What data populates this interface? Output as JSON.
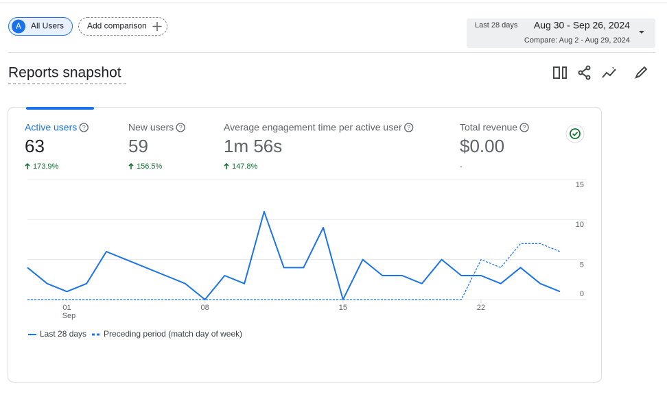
{
  "header": {
    "segment": "All Users",
    "segment_avatar": "A",
    "add_comparison": "Add comparison",
    "date_preset": "Last 28 days",
    "date_range": "Aug 30 - Sep 26, 2024",
    "compare_range": "Compare: Aug 2 - Aug 29, 2024",
    "title": "Reports snapshot"
  },
  "metrics": [
    {
      "label": "Active users",
      "value": "63",
      "change": "173.9%"
    },
    {
      "label": "New users",
      "value": "59",
      "change": "156.5%"
    },
    {
      "label": "Average engagement time per active user",
      "value": "1m 56s",
      "change": "147.8%"
    },
    {
      "label": "Total revenue",
      "value": "$0.00",
      "change": "-"
    }
  ],
  "chart_data": {
    "type": "line",
    "categories": [
      null,
      null,
      "01",
      null,
      null,
      null,
      null,
      null,
      null,
      "08",
      null,
      null,
      null,
      null,
      null,
      null,
      "15",
      null,
      null,
      null,
      null,
      null,
      null,
      "22",
      null,
      null,
      null,
      null
    ],
    "month_label": "Sep",
    "series": [
      {
        "name": "Last 28 days",
        "color": "#1a73e8",
        "dashed": false,
        "values": [
          4,
          2,
          1,
          2,
          6,
          5,
          4,
          3,
          2,
          0,
          3,
          2,
          11,
          4,
          4,
          9,
          0,
          5,
          3,
          3,
          2,
          5,
          3,
          3,
          2,
          4,
          2,
          1
        ]
      },
      {
        "name": "Preceding period (match day of week)",
        "color": "#1a73e8",
        "dashed": true,
        "values": [
          0,
          0,
          0,
          0,
          0,
          0,
          0,
          0,
          0,
          0,
          0,
          0,
          0,
          0,
          0,
          0,
          0,
          0,
          0,
          0,
          0,
          0,
          0,
          5,
          4,
          7,
          7,
          6
        ]
      }
    ],
    "ylim": [
      0,
      15
    ],
    "yticks": [
      0,
      5,
      10,
      15
    ],
    "grid": true
  }
}
